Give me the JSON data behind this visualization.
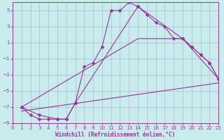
{
  "xlabel": "Windchill (Refroidissement éolien,°C)",
  "bg_color": "#c8ecec",
  "grid_color": "#b0b8d8",
  "line_color": "#993399",
  "xlim": [
    0,
    23
  ],
  "ylim": [
    -9,
    6
  ],
  "xticks": [
    0,
    1,
    2,
    3,
    4,
    5,
    6,
    7,
    8,
    9,
    10,
    11,
    12,
    13,
    14,
    15,
    16,
    17,
    18,
    19,
    20,
    21,
    22,
    23
  ],
  "yticks": [
    -9,
    -7,
    -5,
    -3,
    -1,
    1,
    3,
    5
  ],
  "curve1_x": [
    1,
    2,
    3,
    4,
    5,
    6,
    7,
    8,
    9,
    10,
    11,
    12,
    13,
    14,
    15,
    16,
    17,
    18,
    19,
    20,
    21,
    22,
    23
  ],
  "curve1_y": [
    -7,
    -8,
    -8.5,
    -8.5,
    -8.5,
    -8.5,
    -6.5,
    -2.0,
    -1.5,
    0.5,
    5.0,
    5.0,
    6.0,
    5.5,
    4.5,
    3.5,
    3.0,
    1.5,
    1.5,
    0.5,
    -0.5,
    -1.5,
    -3.5
  ],
  "curve2_x": [
    1,
    3,
    5,
    6,
    7,
    14,
    19,
    20,
    21,
    22,
    23
  ],
  "curve2_y": [
    -7,
    -8,
    -8.5,
    -8.5,
    -6.5,
    5.5,
    1.5,
    0.5,
    -0.5,
    -1.5,
    -3.5
  ],
  "curve3_x": [
    1,
    14,
    19,
    23
  ],
  "curve3_y": [
    -7,
    1.5,
    1.5,
    -3.5
  ],
  "curve4_x": [
    1,
    23
  ],
  "curve4_y": [
    -7.5,
    -4.0
  ]
}
